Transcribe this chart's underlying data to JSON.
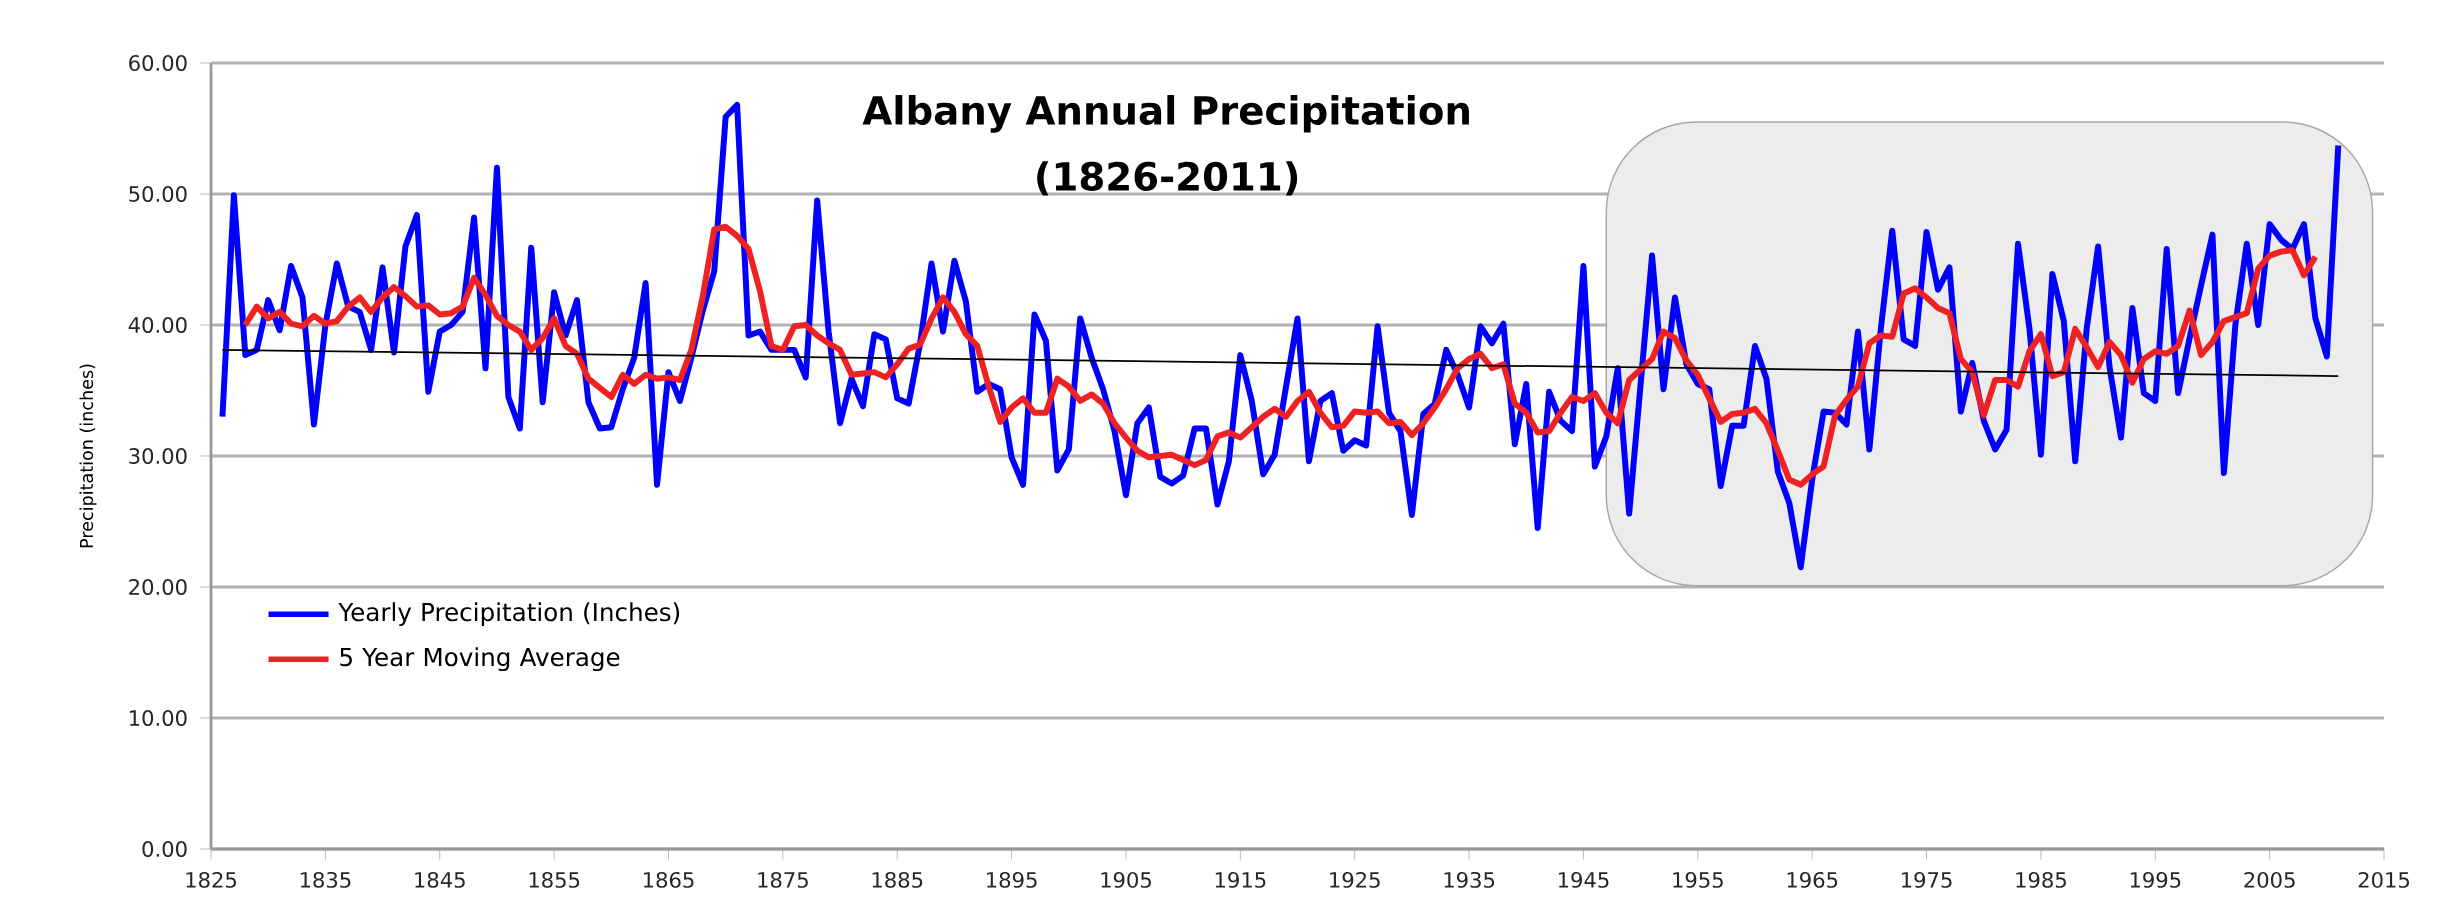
{
  "chart_data": {
    "type": "line",
    "title": "Albany Annual Precipitation",
    "subtitle": "(1826-2011)",
    "ylabel": "Precipitation (inches)",
    "xlim": [
      1825,
      2015
    ],
    "xticks": [
      1825,
      1835,
      1845,
      1855,
      1865,
      1875,
      1885,
      1895,
      1905,
      1915,
      1925,
      1935,
      1945,
      1955,
      1965,
      1975,
      1985,
      1995,
      2005,
      2015
    ],
    "ylim": [
      0,
      60
    ],
    "yticks": [
      {
        "value": 0,
        "label": "0.00"
      },
      {
        "value": 10,
        "label": "10.00"
      },
      {
        "value": 20,
        "label": "20.00"
      },
      {
        "value": 30,
        "label": "30.00"
      },
      {
        "value": 40,
        "label": "40.00"
      },
      {
        "value": 50,
        "label": "50.00"
      },
      {
        "value": 60,
        "label": "60.00"
      }
    ],
    "grid": "y",
    "legend": "left",
    "marker": "none",
    "bands": [
      {
        "axis": "x",
        "from": 1947,
        "to": 2014,
        "color": "#ececec"
      }
    ],
    "series": [
      {
        "name": "Yearly Precipitation (Inches)",
        "color": "#0000ff",
        "x": [
          1826,
          1827,
          1828,
          1829,
          1830,
          1831,
          1832,
          1833,
          1834,
          1835,
          1836,
          1837,
          1838,
          1839,
          1840,
          1841,
          1842,
          1843,
          1844,
          1845,
          1846,
          1847,
          1848,
          1849,
          1850,
          1851,
          1852,
          1853,
          1854,
          1855,
          1856,
          1857,
          1858,
          1859,
          1860,
          1861,
          1862,
          1863,
          1864,
          1865,
          1866,
          1867,
          1868,
          1869,
          1870,
          1871,
          1872,
          1873,
          1874,
          1875,
          1876,
          1877,
          1878,
          1879,
          1880,
          1881,
          1882,
          1883,
          1884,
          1885,
          1886,
          1887,
          1888,
          1889,
          1890,
          1891,
          1892,
          1893,
          1894,
          1895,
          1896,
          1897,
          1898,
          1899,
          1900,
          1901,
          1902,
          1903,
          1904,
          1905,
          1906,
          1907,
          1908,
          1909,
          1910,
          1911,
          1912,
          1913,
          1914,
          1915,
          1916,
          1917,
          1918,
          1919,
          1920,
          1921,
          1922,
          1923,
          1924,
          1925,
          1926,
          1927,
          1928,
          1929,
          1930,
          1931,
          1932,
          1933,
          1934,
          1935,
          1936,
          1937,
          1938,
          1939,
          1940,
          1941,
          1942,
          1943,
          1944,
          1945,
          1946,
          1947,
          1948,
          1949,
          1950,
          1951,
          1952,
          1953,
          1954,
          1955,
          1956,
          1957,
          1958,
          1959,
          1960,
          1961,
          1962,
          1963,
          1964,
          1965,
          1966,
          1967,
          1968,
          1969,
          1970,
          1971,
          1972,
          1973,
          1974,
          1975,
          1976,
          1977,
          1978,
          1979,
          1980,
          1981,
          1982,
          1983,
          1984,
          1985,
          1986,
          1987,
          1988,
          1989,
          1990,
          1991,
          1992,
          1993,
          1994,
          1995,
          1996,
          1997,
          1998,
          1999,
          2000,
          2001,
          2002,
          2003,
          2004,
          2005,
          2006,
          2007,
          2008,
          2009,
          2010,
          2011
        ],
        "values": [
          33.0,
          49.9,
          37.7,
          38.1,
          41.9,
          39.6,
          44.5,
          42.1,
          32.4,
          40.0,
          44.7,
          41.4,
          41.0,
          38.1,
          44.4,
          37.9,
          46.0,
          48.4,
          34.9,
          39.5,
          40.0,
          41.0,
          48.2,
          36.7,
          52.0,
          34.5,
          32.1,
          45.9,
          34.1,
          42.5,
          39.2,
          41.9,
          34.1,
          32.1,
          32.2,
          35.1,
          37.5,
          43.2,
          27.8,
          36.4,
          34.2,
          37.5,
          41.1,
          44.1,
          55.9,
          56.8,
          39.2,
          39.5,
          38.1,
          38.1,
          38.1,
          36.0,
          49.5,
          39.5,
          32.5,
          35.9,
          33.8,
          39.3,
          38.9,
          34.4,
          34.0,
          38.6,
          44.7,
          39.5,
          44.9,
          41.8,
          34.9,
          35.5,
          35.1,
          29.9,
          27.8,
          40.8,
          38.8,
          28.9,
          30.5,
          40.5,
          37.5,
          35.1,
          31.9,
          27.0,
          32.5,
          33.7,
          28.4,
          27.9,
          28.5,
          32.1,
          32.1,
          26.3,
          29.6,
          37.7,
          34.2,
          28.6,
          30.1,
          35.3,
          40.5,
          29.6,
          34.2,
          34.8,
          30.4,
          31.2,
          30.8,
          39.9,
          33.3,
          31.9,
          25.5,
          33.2,
          34.0,
          38.1,
          36.2,
          33.7,
          39.9,
          38.6,
          40.1,
          30.9,
          35.5,
          24.5,
          34.9,
          32.7,
          31.9,
          44.5,
          29.2,
          31.5,
          36.7,
          25.6,
          35.5,
          45.3,
          35.1,
          42.1,
          37.0,
          35.5,
          35.1,
          27.7,
          32.3,
          32.3,
          38.4,
          35.9,
          28.8,
          26.4,
          21.5,
          28.2,
          33.4,
          33.3,
          32.4,
          39.5,
          30.5,
          39.7,
          47.2,
          38.9,
          38.4,
          47.1,
          42.7,
          44.4,
          33.4,
          37.1,
          32.7,
          30.5,
          32.0,
          46.2,
          39.7,
          30.1,
          43.9,
          40.3,
          29.6,
          39.7,
          46.0,
          36.8,
          31.4,
          41.3,
          34.8,
          34.2,
          45.8,
          34.8,
          39.0,
          43.0,
          46.9,
          28.7,
          40.0,
          46.2,
          40.0,
          47.7,
          46.5,
          45.8,
          47.7,
          40.5,
          37.6,
          53.7
        ]
      },
      {
        "name": "5 Year Moving Average",
        "color": "#ee2222",
        "x": [
          1828,
          1829,
          1830,
          1831,
          1832,
          1833,
          1834,
          1835,
          1836,
          1837,
          1838,
          1839,
          1840,
          1841,
          1842,
          1843,
          1844,
          1845,
          1846,
          1847,
          1848,
          1849,
          1850,
          1851,
          1852,
          1853,
          1854,
          1855,
          1856,
          1857,
          1858,
          1859,
          1860,
          1861,
          1862,
          1863,
          1864,
          1865,
          1866,
          1867,
          1868,
          1869,
          1870,
          1871,
          1872,
          1873,
          1874,
          1875,
          1876,
          1877,
          1878,
          1879,
          1880,
          1881,
          1882,
          1883,
          1884,
          1885,
          1886,
          1887,
          1888,
          1889,
          1890,
          1891,
          1892,
          1893,
          1894,
          1895,
          1896,
          1897,
          1898,
          1899,
          1900,
          1901,
          1902,
          1903,
          1904,
          1905,
          1906,
          1907,
          1908,
          1909,
          1910,
          1911,
          1912,
          1913,
          1914,
          1915,
          1916,
          1917,
          1918,
          1919,
          1920,
          1921,
          1922,
          1923,
          1924,
          1925,
          1926,
          1927,
          1928,
          1929,
          1930,
          1931,
          1932,
          1933,
          1934,
          1935,
          1936,
          1937,
          1938,
          1939,
          1940,
          1941,
          1942,
          1943,
          1944,
          1945,
          1946,
          1947,
          1948,
          1949,
          1950,
          1951,
          1952,
          1953,
          1954,
          1955,
          1956,
          1957,
          1958,
          1959,
          1960,
          1961,
          1962,
          1963,
          1964,
          1965,
          1966,
          1967,
          1968,
          1969,
          1970,
          1971,
          1972,
          1973,
          1974,
          1975,
          1976,
          1977,
          1978,
          1979,
          1980,
          1981,
          1982,
          1983,
          1984,
          1985,
          1986,
          1987,
          1988,
          1989,
          1990,
          1991,
          1992,
          1993,
          1994,
          1995,
          1996,
          1997,
          1998,
          1999,
          2000,
          2001,
          2002,
          2003,
          2004,
          2005,
          2006,
          2007,
          2008,
          2009
        ],
        "values": [
          40.0,
          41.4,
          40.5,
          41.0,
          40.1,
          39.9,
          40.7,
          40.1,
          40.3,
          41.4,
          42.1,
          41.0,
          42.1,
          42.9,
          42.2,
          41.4,
          41.5,
          40.8,
          40.9,
          41.4,
          43.6,
          42.3,
          40.7,
          40.0,
          39.5,
          38.1,
          39.0,
          40.5,
          38.4,
          37.8,
          35.9,
          35.2,
          34.5,
          36.2,
          35.5,
          36.2,
          35.9,
          36.0,
          35.8,
          38.1,
          42.2,
          47.3,
          47.5,
          46.8,
          45.8,
          42.6,
          38.4,
          38.1,
          39.9,
          40.0,
          39.2,
          38.6,
          38.1,
          36.2,
          36.3,
          36.4,
          36.0,
          37.0,
          38.2,
          38.5,
          40.5,
          42.1,
          41.0,
          39.3,
          38.4,
          35.3,
          32.6,
          33.7,
          34.4,
          33.3,
          33.3,
          35.9,
          35.3,
          34.2,
          34.7,
          34.0,
          32.5,
          31.4,
          30.4,
          29.9,
          30.0,
          30.1,
          29.7,
          29.3,
          29.7,
          31.5,
          31.8,
          31.4,
          32.2,
          33.0,
          33.6,
          33.0,
          34.2,
          34.9,
          33.3,
          32.2,
          32.3,
          33.4,
          33.3,
          33.4,
          32.5,
          32.6,
          31.6,
          32.5,
          33.7,
          35.1,
          36.7,
          37.4,
          37.8,
          36.7,
          37.0,
          34.0,
          33.3,
          31.8,
          31.9,
          33.3,
          34.5,
          34.2,
          34.8,
          33.3,
          32.5,
          35.8,
          36.6,
          37.4,
          39.5,
          39.0,
          37.3,
          36.2,
          34.4,
          32.6,
          33.2,
          33.3,
          33.6,
          32.5,
          30.4,
          28.2,
          27.8,
          28.6,
          29.2,
          33.1,
          34.3,
          35.3,
          38.6,
          39.2,
          39.1,
          42.4,
          42.8,
          42.1,
          41.3,
          40.9,
          37.4,
          36.4,
          33.1,
          35.8,
          35.8,
          35.3,
          38.0,
          39.3,
          36.1,
          36.4,
          39.7,
          38.3,
          36.8,
          38.7,
          37.7,
          35.6,
          37.4,
          38.0,
          37.8,
          38.4,
          41.1,
          37.7,
          38.7,
          40.3,
          40.6,
          40.9,
          44.3,
          45.3,
          45.6,
          45.7,
          43.8,
          45.2
        ]
      },
      {
        "type": "line",
        "color": "#000000",
        "x": [
          1826,
          2011
        ],
        "values": [
          38.1,
          36.1
        ]
      }
    ]
  }
}
